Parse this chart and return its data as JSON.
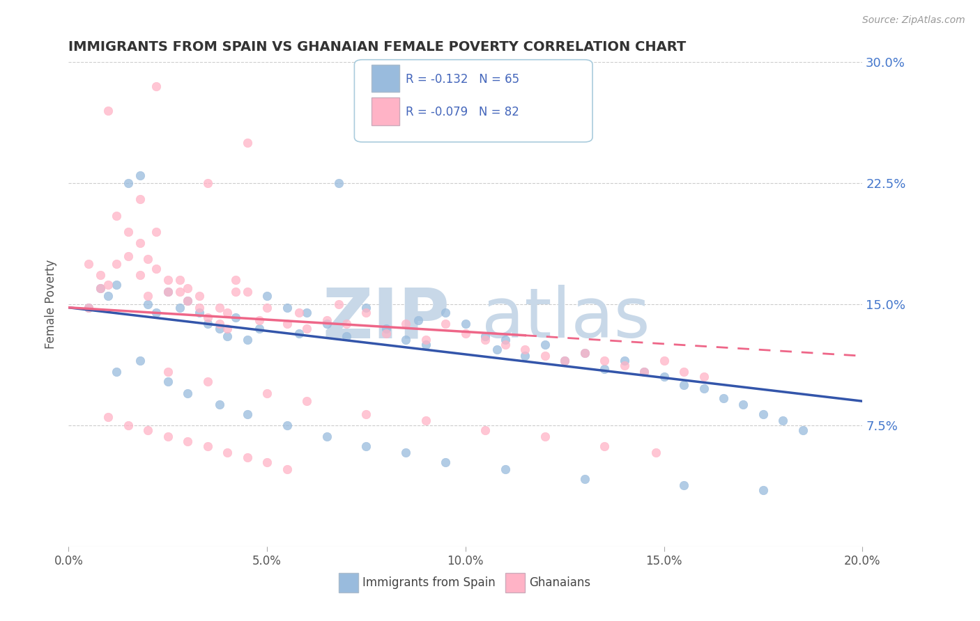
{
  "title": "IMMIGRANTS FROM SPAIN VS GHANAIAN FEMALE POVERTY CORRELATION CHART",
  "source": "Source: ZipAtlas.com",
  "ylabel": "Female Poverty",
  "legend_label_blue": "Immigrants from Spain",
  "legend_label_pink": "Ghanaians",
  "R_blue": -0.132,
  "N_blue": 65,
  "R_pink": -0.079,
  "N_pink": 82,
  "xlim": [
    0.0,
    0.2
  ],
  "ylim": [
    0.0,
    0.3
  ],
  "xticks": [
    0.0,
    0.05,
    0.1,
    0.15,
    0.2
  ],
  "xtick_labels": [
    "0.0%",
    "5.0%",
    "10.0%",
    "15.0%",
    "20.0%"
  ],
  "yticks_right": [
    0.075,
    0.15,
    0.225,
    0.3
  ],
  "ytick_labels_right": [
    "7.5%",
    "15.0%",
    "22.5%",
    "30.0%"
  ],
  "color_blue": "#99BBDD",
  "color_pink": "#FFB3C6",
  "trend_blue": "#3355AA",
  "trend_pink": "#EE6688",
  "watermark_zip": "ZIP",
  "watermark_atlas": "atlas",
  "watermark_color": "#C8D8E8",
  "background": "#FFFFFF",
  "trend_blue_x0": 0.0,
  "trend_blue_y0": 0.148,
  "trend_blue_x1": 0.2,
  "trend_blue_y1": 0.09,
  "trend_pink_x0": 0.0,
  "trend_pink_y0": 0.148,
  "trend_pink_x1": 0.2,
  "trend_pink_y1": 0.118,
  "trend_pink_dash_start": 0.115,
  "blue_x": [
    0.005,
    0.008,
    0.01,
    0.012,
    0.015,
    0.018,
    0.02,
    0.022,
    0.025,
    0.028,
    0.03,
    0.033,
    0.035,
    0.038,
    0.04,
    0.042,
    0.045,
    0.048,
    0.05,
    0.055,
    0.058,
    0.06,
    0.065,
    0.068,
    0.07,
    0.075,
    0.08,
    0.085,
    0.088,
    0.09,
    0.095,
    0.1,
    0.105,
    0.108,
    0.11,
    0.115,
    0.12,
    0.125,
    0.13,
    0.135,
    0.14,
    0.145,
    0.15,
    0.155,
    0.16,
    0.165,
    0.17,
    0.175,
    0.18,
    0.185,
    0.012,
    0.018,
    0.025,
    0.03,
    0.038,
    0.045,
    0.055,
    0.065,
    0.075,
    0.085,
    0.095,
    0.11,
    0.13,
    0.155,
    0.175
  ],
  "blue_y": [
    0.148,
    0.16,
    0.155,
    0.162,
    0.225,
    0.23,
    0.15,
    0.145,
    0.158,
    0.148,
    0.152,
    0.145,
    0.138,
    0.135,
    0.13,
    0.142,
    0.128,
    0.135,
    0.155,
    0.148,
    0.132,
    0.145,
    0.138,
    0.225,
    0.13,
    0.148,
    0.135,
    0.128,
    0.14,
    0.125,
    0.145,
    0.138,
    0.13,
    0.122,
    0.128,
    0.118,
    0.125,
    0.115,
    0.12,
    0.11,
    0.115,
    0.108,
    0.105,
    0.1,
    0.098,
    0.092,
    0.088,
    0.082,
    0.078,
    0.072,
    0.108,
    0.115,
    0.102,
    0.095,
    0.088,
    0.082,
    0.075,
    0.068,
    0.062,
    0.058,
    0.052,
    0.048,
    0.042,
    0.038,
    0.035
  ],
  "pink_x": [
    0.005,
    0.008,
    0.01,
    0.012,
    0.015,
    0.018,
    0.02,
    0.022,
    0.025,
    0.028,
    0.03,
    0.033,
    0.035,
    0.038,
    0.04,
    0.042,
    0.045,
    0.048,
    0.05,
    0.055,
    0.058,
    0.06,
    0.065,
    0.068,
    0.07,
    0.075,
    0.08,
    0.085,
    0.09,
    0.095,
    0.1,
    0.105,
    0.11,
    0.115,
    0.12,
    0.125,
    0.13,
    0.135,
    0.14,
    0.145,
    0.15,
    0.155,
    0.16,
    0.005,
    0.008,
    0.01,
    0.012,
    0.015,
    0.018,
    0.02,
    0.022,
    0.025,
    0.028,
    0.03,
    0.033,
    0.035,
    0.038,
    0.04,
    0.042,
    0.045,
    0.01,
    0.015,
    0.02,
    0.025,
    0.03,
    0.035,
    0.04,
    0.045,
    0.05,
    0.055,
    0.025,
    0.035,
    0.05,
    0.06,
    0.075,
    0.09,
    0.105,
    0.12,
    0.135,
    0.148,
    0.018,
    0.022
  ],
  "pink_y": [
    0.148,
    0.16,
    0.27,
    0.175,
    0.18,
    0.168,
    0.155,
    0.285,
    0.158,
    0.165,
    0.16,
    0.155,
    0.225,
    0.148,
    0.145,
    0.158,
    0.25,
    0.14,
    0.148,
    0.138,
    0.145,
    0.135,
    0.14,
    0.15,
    0.138,
    0.145,
    0.132,
    0.138,
    0.128,
    0.138,
    0.132,
    0.128,
    0.125,
    0.122,
    0.118,
    0.115,
    0.12,
    0.115,
    0.112,
    0.108,
    0.115,
    0.108,
    0.105,
    0.175,
    0.168,
    0.162,
    0.205,
    0.195,
    0.188,
    0.178,
    0.172,
    0.165,
    0.158,
    0.152,
    0.148,
    0.142,
    0.138,
    0.135,
    0.165,
    0.158,
    0.08,
    0.075,
    0.072,
    0.068,
    0.065,
    0.062,
    0.058,
    0.055,
    0.052,
    0.048,
    0.108,
    0.102,
    0.095,
    0.09,
    0.082,
    0.078,
    0.072,
    0.068,
    0.062,
    0.058,
    0.215,
    0.195
  ]
}
